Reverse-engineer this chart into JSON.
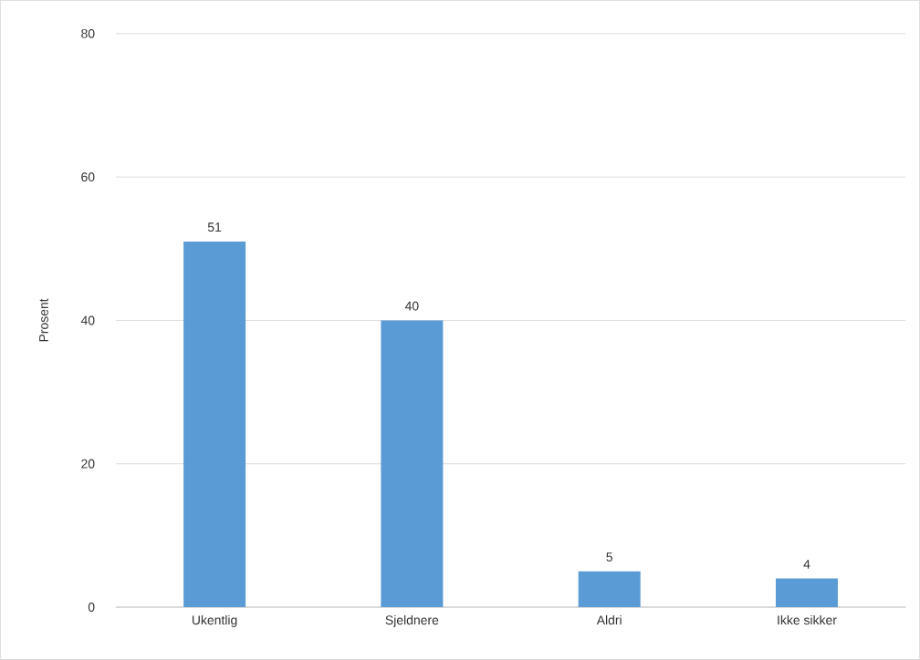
{
  "chart_data": {
    "type": "bar",
    "ylabel": "Prosent",
    "categories": [
      "Ukentlig",
      "Sjeldnere",
      "Aldri",
      "Ikke sikker"
    ],
    "values": [
      51,
      40,
      5,
      4
    ],
    "color": "#5b9bd5",
    "ylim": [
      0,
      80
    ],
    "yticks": [
      0,
      20,
      40,
      60,
      80
    ],
    "grid": "y",
    "data_labels": true
  }
}
